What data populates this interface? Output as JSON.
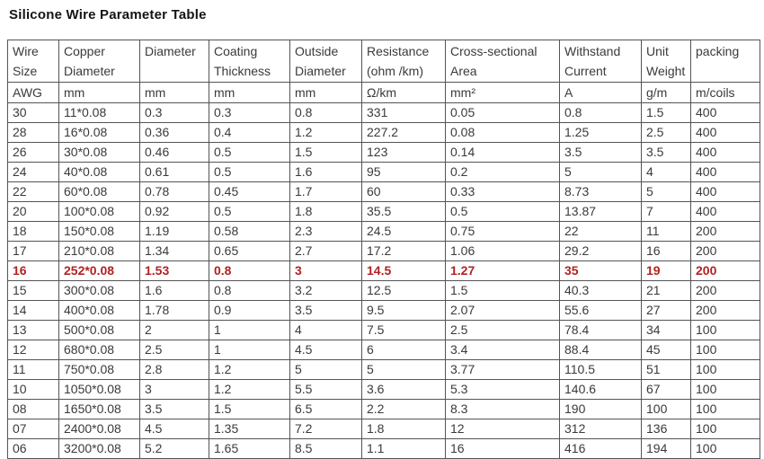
{
  "title": "Silicone Wire Parameter Table",
  "colors": {
    "highlight_row": "#b22222",
    "text": "#3a3a3a",
    "border": "#545454",
    "background": "#ffffff"
  },
  "table": {
    "columns": [
      {
        "label": "Wire Size",
        "unit": "AWG"
      },
      {
        "label": "Copper Diameter",
        "unit": "mm"
      },
      {
        "label": "Diameter",
        "unit": "mm"
      },
      {
        "label": "Coating Thickness",
        "unit": "mm"
      },
      {
        "label": "Outside Diameter",
        "unit": "mm"
      },
      {
        "label": "Resistance (ohm /km)",
        "unit": "Ω/km"
      },
      {
        "label": "Cross-sectional Area",
        "unit": "mm²"
      },
      {
        "label": "Withstand Current",
        "unit": "A"
      },
      {
        "label": "Unit Weight",
        "unit": "g/m"
      },
      {
        "label": "packing",
        "unit": "m/coils"
      }
    ],
    "rows": [
      {
        "highlight": false,
        "cells": [
          "30",
          "11*0.08",
          "0.3",
          "0.3",
          "0.8",
          "331",
          "0.05",
          "0.8",
          "1.5",
          "400"
        ]
      },
      {
        "highlight": false,
        "cells": [
          "28",
          "16*0.08",
          "0.36",
          "0.4",
          "1.2",
          "227.2",
          "0.08",
          "1.25",
          "2.5",
          "400"
        ]
      },
      {
        "highlight": false,
        "cells": [
          "26",
          "30*0.08",
          "0.46",
          "0.5",
          "1.5",
          "123",
          "0.14",
          "3.5",
          "3.5",
          "400"
        ]
      },
      {
        "highlight": false,
        "cells": [
          "24",
          "40*0.08",
          "0.61",
          "0.5",
          "1.6",
          "95",
          "0.2",
          "5",
          "4",
          "400"
        ]
      },
      {
        "highlight": false,
        "cells": [
          "22",
          "60*0.08",
          "0.78",
          "0.45",
          "1.7",
          "60",
          "0.33",
          "8.73",
          "5",
          "400"
        ]
      },
      {
        "highlight": false,
        "cells": [
          "20",
          "100*0.08",
          "0.92",
          "0.5",
          "1.8",
          "35.5",
          "0.5",
          "13.87",
          "7",
          "400"
        ]
      },
      {
        "highlight": false,
        "cells": [
          "18",
          "150*0.08",
          "1.19",
          "0.58",
          "2.3",
          "24.5",
          "0.75",
          "22",
          "11",
          "200"
        ]
      },
      {
        "highlight": false,
        "cells": [
          "17",
          "210*0.08",
          "1.34",
          "0.65",
          "2.7",
          "17.2",
          "1.06",
          "29.2",
          "16",
          "200"
        ]
      },
      {
        "highlight": true,
        "cells": [
          "16",
          "252*0.08",
          "1.53",
          "0.8",
          "3",
          "14.5",
          "1.27",
          "35",
          "19",
          "200"
        ]
      },
      {
        "highlight": false,
        "cells": [
          "15",
          "300*0.08",
          "1.6",
          "0.8",
          "3.2",
          "12.5",
          "1.5",
          "40.3",
          "21",
          "200"
        ]
      },
      {
        "highlight": false,
        "cells": [
          "14",
          "400*0.08",
          "1.78",
          "0.9",
          "3.5",
          "9.5",
          "2.07",
          "55.6",
          "27",
          "200"
        ]
      },
      {
        "highlight": false,
        "cells": [
          "13",
          "500*0.08",
          "2",
          "1",
          "4",
          "7.5",
          "2.5",
          "78.4",
          "34",
          "100"
        ]
      },
      {
        "highlight": false,
        "cells": [
          "12",
          "680*0.08",
          "2.5",
          "1",
          "4.5",
          "6",
          "3.4",
          "88.4",
          "45",
          "100"
        ]
      },
      {
        "highlight": false,
        "cells": [
          "11",
          "750*0.08",
          "2.8",
          "1.2",
          "5",
          "5",
          "3.77",
          "110.5",
          "51",
          "100"
        ]
      },
      {
        "highlight": false,
        "cells": [
          "10",
          "1050*0.08",
          "3",
          "1.2",
          "5.5",
          "3.6",
          "5.3",
          "140.6",
          "67",
          "100"
        ]
      },
      {
        "highlight": false,
        "cells": [
          "08",
          "1650*0.08",
          "3.5",
          "1.5",
          "6.5",
          "2.2",
          "8.3",
          "190",
          "100",
          "100"
        ]
      },
      {
        "highlight": false,
        "cells": [
          "07",
          "2400*0.08",
          "4.5",
          "1.35",
          "7.2",
          "1.8",
          "12",
          "312",
          "136",
          "100"
        ]
      },
      {
        "highlight": false,
        "cells": [
          "06",
          "3200*0.08",
          "5.2",
          "1.65",
          "8.5",
          "1.1",
          "16",
          "416",
          "194",
          "100"
        ]
      }
    ]
  }
}
